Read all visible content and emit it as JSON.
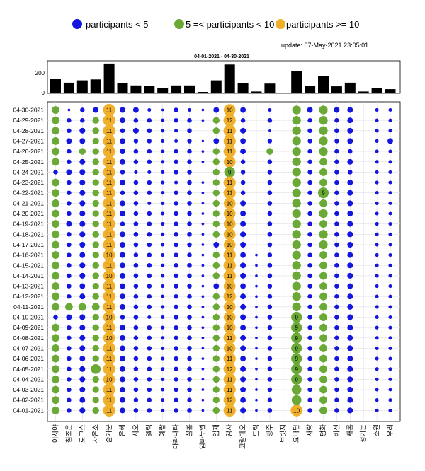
{
  "chart_data": {
    "type": "scatter",
    "title": "04-01-2021  - 04-30-2021",
    "update_text": "update: 07-May-2021 23:05:01",
    "legend": [
      {
        "label": "participants < 5",
        "color": "#1515e0"
      },
      {
        "label": "5 =< participants < 10",
        "color": "#6aa936"
      },
      {
        "label": "participants >= 10",
        "color": "#f0b02b"
      }
    ],
    "colors": {
      "small": "#1515e0",
      "mid": "#6aa936",
      "large": "#f0b02b",
      "bar": "#000000",
      "grid": "#e0e0e0"
    },
    "categories": [
      "이사야",
      "침조은",
      "로고스",
      "사온소",
      "즐거운",
      "은혜",
      "사오",
      "엘림",
      "예람",
      "마라나타",
      "샬롬",
      "임마누엘",
      "임재",
      "감사",
      "코람데오",
      "드림",
      "방주",
      "브릿지",
      "요나단",
      "사랑",
      "평화",
      "비전",
      "새롬",
      "성기는",
      "소원",
      "우리"
    ],
    "bar_totals": [
      155,
      115,
      140,
      150,
      320,
      110,
      85,
      80,
      60,
      85,
      85,
      15,
      140,
      310,
      110,
      20,
      105,
      0,
      240,
      80,
      190,
      75,
      115,
      20,
      55,
      45
    ],
    "bar_ylim": [
      0,
      350
    ],
    "bar_yticks": [
      0,
      200
    ],
    "dates": [
      "04-30-2021",
      "04-29-2021",
      "04-28-2021",
      "04-27-2021",
      "04-26-2021",
      "04-25-2021",
      "04-24-2021",
      "04-23-2021",
      "04-22-2021",
      "04-21-2021",
      "04-20-2021",
      "04-19-2021",
      "04-18-2021",
      "04-17-2021",
      "04-16-2021",
      "04-15-2021",
      "04-14-2021",
      "04-13-2021",
      "04-12-2021",
      "04-11-2021",
      "04-10-2021",
      "04-09-2021",
      "04-08-2021",
      "04-07-2021",
      "04-06-2021",
      "04-05-2021",
      "04-04-2021",
      "04-03-2021",
      "04-02-2021",
      "04-01-2021"
    ],
    "matrix": [
      [
        6,
        1,
        3,
        4,
        11,
        4,
        4,
        2,
        1,
        3,
        2,
        1,
        4,
        10,
        4,
        0,
        2,
        0,
        7,
        4,
        7,
        4,
        4,
        0,
        2,
        2
      ],
      [
        6,
        3,
        3,
        5,
        11,
        4,
        3,
        3,
        2,
        3,
        3,
        1,
        5,
        12,
        3,
        0,
        3,
        0,
        7,
        3,
        7,
        3,
        4,
        0,
        2,
        2
      ],
      [
        6,
        3,
        4,
        5,
        11,
        3,
        4,
        3,
        2,
        2,
        3,
        0,
        5,
        11,
        4,
        0,
        1,
        0,
        7,
        3,
        7,
        3,
        4,
        0,
        2,
        2
      ],
      [
        6,
        4,
        4,
        5,
        11,
        4,
        3,
        3,
        2,
        2,
        3,
        1,
        4,
        11,
        4,
        0,
        3,
        0,
        7,
        3,
        7,
        3,
        4,
        0,
        2,
        4
      ],
      [
        6,
        3,
        5,
        5,
        11,
        4,
        3,
        3,
        2,
        3,
        3,
        1,
        5,
        11,
        4,
        0,
        5,
        0,
        7,
        3,
        7,
        3,
        3,
        0,
        2,
        2
      ],
      [
        6,
        3,
        4,
        5,
        11,
        4,
        3,
        3,
        2,
        3,
        3,
        1,
        5,
        10,
        3,
        0,
        3,
        0,
        7,
        3,
        6,
        3,
        4,
        0,
        2,
        2
      ],
      [
        3,
        4,
        4,
        5,
        11,
        3,
        2,
        2,
        2,
        3,
        3,
        0,
        5,
        9,
        3,
        0,
        3,
        0,
        7,
        3,
        6,
        3,
        3,
        0,
        2,
        2
      ],
      [
        6,
        3,
        4,
        5,
        11,
        4,
        3,
        3,
        2,
        2,
        3,
        1,
        5,
        11,
        3,
        0,
        3,
        0,
        7,
        3,
        6,
        3,
        4,
        0,
        2,
        2
      ],
      [
        6,
        3,
        4,
        5,
        11,
        3,
        3,
        3,
        2,
        3,
        3,
        1,
        5,
        11,
        3,
        0,
        3,
        0,
        7,
        3,
        9,
        3,
        4,
        0,
        2,
        2
      ],
      [
        6,
        3,
        4,
        5,
        11,
        4,
        3,
        2,
        2,
        3,
        3,
        1,
        5,
        10,
        4,
        0,
        3,
        0,
        7,
        3,
        6,
        3,
        4,
        0,
        2,
        2
      ],
      [
        6,
        3,
        4,
        5,
        11,
        4,
        3,
        3,
        2,
        3,
        3,
        1,
        5,
        10,
        4,
        0,
        3,
        0,
        7,
        3,
        7,
        3,
        4,
        0,
        2,
        2
      ],
      [
        6,
        4,
        4,
        5,
        11,
        3,
        3,
        3,
        2,
        3,
        3,
        1,
        5,
        10,
        4,
        0,
        3,
        0,
        7,
        3,
        6,
        3,
        4,
        0,
        2,
        2
      ],
      [
        6,
        3,
        4,
        5,
        11,
        4,
        3,
        3,
        2,
        3,
        3,
        1,
        5,
        10,
        4,
        0,
        3,
        0,
        7,
        3,
        7,
        3,
        4,
        0,
        2,
        2
      ],
      [
        6,
        3,
        4,
        5,
        11,
        4,
        3,
        3,
        2,
        3,
        3,
        1,
        4,
        10,
        4,
        0,
        3,
        0,
        7,
        3,
        7,
        3,
        4,
        0,
        2,
        2
      ],
      [
        6,
        3,
        4,
        5,
        10,
        4,
        3,
        3,
        2,
        3,
        3,
        1,
        5,
        11,
        4,
        1,
        3,
        0,
        7,
        3,
        6,
        3,
        4,
        0,
        2,
        2
      ],
      [
        6,
        3,
        4,
        5,
        11,
        4,
        3,
        3,
        2,
        3,
        3,
        1,
        5,
        11,
        4,
        1,
        3,
        0,
        7,
        3,
        6,
        3,
        4,
        0,
        2,
        2
      ],
      [
        6,
        3,
        4,
        5,
        10,
        4,
        3,
        3,
        2,
        3,
        3,
        1,
        5,
        11,
        4,
        1,
        3,
        0,
        7,
        3,
        6,
        3,
        4,
        0,
        2,
        2
      ],
      [
        6,
        3,
        4,
        5,
        11,
        4,
        3,
        3,
        2,
        3,
        3,
        1,
        4,
        10,
        4,
        1,
        3,
        0,
        7,
        3,
        6,
        3,
        4,
        0,
        2,
        2
      ],
      [
        6,
        3,
        4,
        5,
        11,
        4,
        3,
        3,
        2,
        3,
        3,
        1,
        5,
        12,
        4,
        1,
        3,
        0,
        7,
        3,
        6,
        3,
        4,
        0,
        2,
        2
      ],
      [
        6,
        6,
        6,
        6,
        11,
        4,
        3,
        3,
        2,
        3,
        3,
        1,
        5,
        10,
        4,
        1,
        3,
        0,
        7,
        3,
        6,
        3,
        4,
        0,
        2,
        2
      ],
      [
        3,
        4,
        4,
        5,
        10,
        3,
        3,
        2,
        2,
        3,
        3,
        1,
        5,
        10,
        4,
        1,
        3,
        0,
        9,
        3,
        6,
        3,
        4,
        0,
        2,
        2
      ],
      [
        6,
        3,
        4,
        5,
        11,
        4,
        3,
        3,
        2,
        3,
        3,
        1,
        5,
        10,
        4,
        1,
        3,
        0,
        9,
        3,
        6,
        3,
        4,
        0,
        2,
        2
      ],
      [
        6,
        3,
        4,
        5,
        10,
        4,
        3,
        3,
        2,
        3,
        3,
        1,
        5,
        11,
        4,
        1,
        3,
        0,
        9,
        3,
        6,
        3,
        4,
        0,
        2,
        2
      ],
      [
        6,
        3,
        4,
        5,
        11,
        4,
        3,
        3,
        2,
        3,
        3,
        1,
        5,
        10,
        4,
        1,
        3,
        0,
        9,
        3,
        6,
        3,
        4,
        0,
        2,
        2
      ],
      [
        6,
        3,
        4,
        5,
        11,
        4,
        3,
        3,
        2,
        3,
        3,
        1,
        5,
        11,
        4,
        1,
        3,
        0,
        9,
        3,
        6,
        3,
        4,
        0,
        2,
        2
      ],
      [
        6,
        3,
        4,
        8,
        11,
        4,
        3,
        3,
        2,
        3,
        3,
        1,
        5,
        12,
        4,
        1,
        3,
        0,
        9,
        3,
        6,
        3,
        4,
        0,
        2,
        2
      ],
      [
        6,
        3,
        4,
        5,
        10,
        4,
        3,
        3,
        2,
        3,
        3,
        1,
        5,
        11,
        4,
        1,
        3,
        0,
        9,
        3,
        6,
        3,
        4,
        0,
        2,
        2
      ],
      [
        6,
        3,
        4,
        5,
        11,
        4,
        3,
        3,
        2,
        3,
        3,
        1,
        5,
        11,
        4,
        1,
        3,
        0,
        8,
        3,
        6,
        3,
        4,
        0,
        2,
        2
      ],
      [
        6,
        3,
        4,
        5,
        11,
        4,
        3,
        3,
        2,
        3,
        3,
        1,
        5,
        12,
        4,
        1,
        3,
        0,
        8,
        3,
        6,
        3,
        4,
        0,
        2,
        2
      ],
      [
        6,
        3,
        4,
        5,
        11,
        4,
        3,
        3,
        2,
        3,
        3,
        1,
        5,
        11,
        4,
        1,
        3,
        0,
        10,
        3,
        6,
        3,
        4,
        0,
        2,
        2
      ]
    ]
  }
}
